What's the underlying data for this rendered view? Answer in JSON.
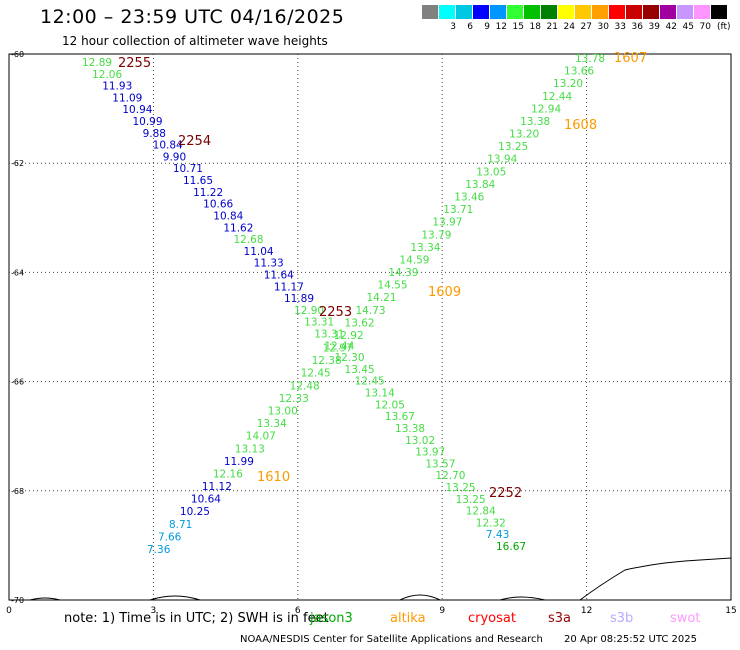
{
  "header": {
    "title": "12:00 – 23:59 UTC 04/16/2025",
    "subtitle": "12 hour collection of altimeter wave heights"
  },
  "scale": {
    "colors": [
      "#808080",
      "#00ffff",
      "#00c8e0",
      "#0000ff",
      "#0096ff",
      "#32ff32",
      "#00c000",
      "#008000",
      "#ffff00",
      "#ffc800",
      "#ffa000",
      "#ff0000",
      "#c80000",
      "#960000",
      "#a000a0",
      "#c896ff",
      "#ff96ff",
      "#000000"
    ],
    "labels": [
      "3",
      "6",
      "9",
      "12",
      "15",
      "18",
      "21",
      "24",
      "27",
      "30",
      "33",
      "36",
      "39",
      "42",
      "45",
      "70"
    ],
    "unit": "(ft)"
  },
  "map": {
    "x_ticks": [
      "0",
      "3",
      "6",
      "9",
      "12",
      "15"
    ],
    "y_ticks": [
      "-60",
      "-62",
      "-64",
      "-66",
      "-68",
      "-70"
    ],
    "pass_labels": [
      {
        "text": "2255",
        "color": "#7a0000"
      },
      {
        "text": "2254",
        "color": "#7a0000"
      },
      {
        "text": "2253",
        "color": "#7a0000"
      },
      {
        "text": "2252",
        "color": "#7a0000"
      },
      {
        "text": "1607",
        "color": "#ff9900"
      },
      {
        "text": "1608",
        "color": "#ff9900"
      },
      {
        "text": "1609",
        "color": "#ff9900"
      },
      {
        "text": "1610",
        "color": "#ff9900"
      }
    ],
    "track_2255_2252": [
      {
        "v": "12.89",
        "c": "#44dd44"
      },
      {
        "v": "12.06",
        "c": "#44dd44"
      },
      {
        "v": "11.93",
        "c": "#0000cc"
      },
      {
        "v": "11.09",
        "c": "#0000cc"
      },
      {
        "v": "10.94",
        "c": "#0000cc"
      },
      {
        "v": "10.99",
        "c": "#0000cc"
      },
      {
        "v": "9.88",
        "c": "#0000cc"
      },
      {
        "v": "10.84",
        "c": "#0000cc"
      },
      {
        "v": "9.90",
        "c": "#0000cc"
      },
      {
        "v": "10.71",
        "c": "#0000cc"
      },
      {
        "v": "11.65",
        "c": "#0000cc"
      },
      {
        "v": "11.22",
        "c": "#0000cc"
      },
      {
        "v": "10.66",
        "c": "#0000cc"
      },
      {
        "v": "10.84",
        "c": "#0000cc"
      },
      {
        "v": "11.62",
        "c": "#0000cc"
      },
      {
        "v": "12.68",
        "c": "#44dd44"
      },
      {
        "v": "11.04",
        "c": "#0000cc"
      },
      {
        "v": "11.33",
        "c": "#0000cc"
      },
      {
        "v": "11.64",
        "c": "#0000cc"
      },
      {
        "v": "11.17",
        "c": "#0000cc"
      },
      {
        "v": "11.89",
        "c": "#0000cc"
      },
      {
        "v": "12.90",
        "c": "#44dd44"
      },
      {
        "v": "13.31",
        "c": "#44dd44"
      },
      {
        "v": "13.31",
        "c": "#44dd44"
      },
      {
        "v": "12.44",
        "c": "#44dd44"
      },
      {
        "v": "12.30",
        "c": "#44dd44"
      },
      {
        "v": "13.45",
        "c": "#44dd44"
      },
      {
        "v": "12.45",
        "c": "#44dd44"
      },
      {
        "v": "13.14",
        "c": "#44dd44"
      },
      {
        "v": "12.05",
        "c": "#44dd44"
      },
      {
        "v": "13.67",
        "c": "#44dd44"
      },
      {
        "v": "13.38",
        "c": "#44dd44"
      },
      {
        "v": "13.02",
        "c": "#44dd44"
      },
      {
        "v": "13.97",
        "c": "#44dd44"
      },
      {
        "v": "13.57",
        "c": "#44dd44"
      },
      {
        "v": "12.70",
        "c": "#44dd44"
      },
      {
        "v": "13.25",
        "c": "#44dd44"
      },
      {
        "v": "13.25",
        "c": "#44dd44"
      },
      {
        "v": "12.84",
        "c": "#44dd44"
      },
      {
        "v": "12.32",
        "c": "#44dd44"
      },
      {
        "v": "7.43",
        "c": "#0099dd"
      },
      {
        "v": "16.67",
        "c": "#00aa00"
      }
    ],
    "track_1607_1610": [
      {
        "v": "13.78",
        "c": "#44dd44"
      },
      {
        "v": "13.66",
        "c": "#44dd44"
      },
      {
        "v": "13.20",
        "c": "#44dd44"
      },
      {
        "v": "12.44",
        "c": "#44dd44"
      },
      {
        "v": "12.94",
        "c": "#44dd44"
      },
      {
        "v": "13.38",
        "c": "#44dd44"
      },
      {
        "v": "13.20",
        "c": "#44dd44"
      },
      {
        "v": "13.25",
        "c": "#44dd44"
      },
      {
        "v": "13.94",
        "c": "#44dd44"
      },
      {
        "v": "13.05",
        "c": "#44dd44"
      },
      {
        "v": "13.84",
        "c": "#44dd44"
      },
      {
        "v": "13.46",
        "c": "#44dd44"
      },
      {
        "v": "13.71",
        "c": "#44dd44"
      },
      {
        "v": "13.97",
        "c": "#44dd44"
      },
      {
        "v": "13.79",
        "c": "#44dd44"
      },
      {
        "v": "13.34",
        "c": "#44dd44"
      },
      {
        "v": "14.59",
        "c": "#44dd44"
      },
      {
        "v": "14.39",
        "c": "#44dd44"
      },
      {
        "v": "14.55",
        "c": "#44dd44"
      },
      {
        "v": "14.21",
        "c": "#44dd44"
      },
      {
        "v": "14.73",
        "c": "#44dd44"
      },
      {
        "v": "13.62",
        "c": "#44dd44"
      },
      {
        "v": "12.92",
        "c": "#44dd44"
      },
      {
        "v": "12.97",
        "c": "#44dd44"
      },
      {
        "v": "12.38",
        "c": "#44dd44"
      },
      {
        "v": "12.45",
        "c": "#44dd44"
      },
      {
        "v": "12.48",
        "c": "#44dd44"
      },
      {
        "v": "12.33",
        "c": "#44dd44"
      },
      {
        "v": "13.00",
        "c": "#44dd44"
      },
      {
        "v": "13.34",
        "c": "#44dd44"
      },
      {
        "v": "14.07",
        "c": "#44dd44"
      },
      {
        "v": "13.13",
        "c": "#44dd44"
      },
      {
        "v": "11.99",
        "c": "#0000cc"
      },
      {
        "v": "12.16",
        "c": "#44dd44"
      },
      {
        "v": "11.12",
        "c": "#0000cc"
      },
      {
        "v": "10.64",
        "c": "#0000cc"
      },
      {
        "v": "10.25",
        "c": "#0000cc"
      },
      {
        "v": "8.71",
        "c": "#0099dd"
      },
      {
        "v": "7.66",
        "c": "#0099dd"
      },
      {
        "v": "7.36",
        "c": "#0099dd"
      }
    ]
  },
  "legend": {
    "note": "note:  1) Time is in UTC;  2) SWH is in feet",
    "satellites": [
      {
        "name": "jason3",
        "color": "#00aa00"
      },
      {
        "name": "altika",
        "color": "#ff9900"
      },
      {
        "name": "cryosat",
        "color": "#ff0000"
      },
      {
        "name": "s3a",
        "color": "#990000"
      },
      {
        "name": "s3b",
        "color": "#bbaaff"
      },
      {
        "name": "swot",
        "color": "#ff99ff"
      }
    ]
  },
  "footer": {
    "credit": "NOAA/NESDIS Center for Satellite Applications and Research",
    "timestamp": "20 Apr 08:25:52 UTC 2025"
  }
}
